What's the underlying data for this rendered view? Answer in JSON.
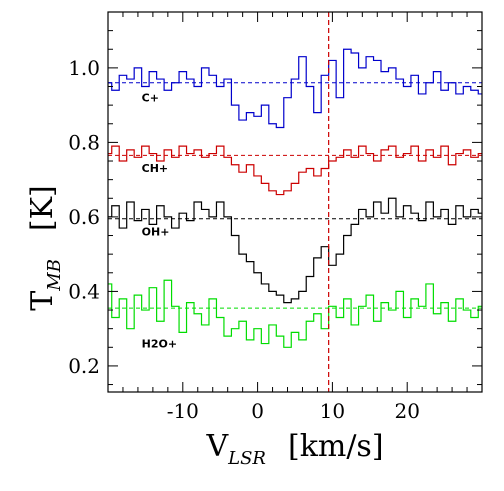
{
  "chart_data": {
    "type": "line",
    "title": "",
    "xlabel": {
      "main": "V",
      "sub": "LSR",
      "unit": "[km/s]"
    },
    "ylabel": {
      "main": "T",
      "sub": "MB",
      "unit": "[K]"
    },
    "xlim": [
      -20,
      30
    ],
    "ylim": [
      0.13,
      1.15
    ],
    "x_ticks": [
      -10,
      0,
      10,
      20
    ],
    "y_ticks": [
      0.2,
      0.4,
      0.6,
      0.8,
      1.0
    ],
    "x_tick_labels": [
      "-10",
      "0",
      "10",
      "20"
    ],
    "y_tick_labels": [
      "0.2",
      "0.4",
      "0.6",
      "0.8",
      "1.0"
    ],
    "vline": {
      "x": 9.5,
      "color": "#cc0000"
    },
    "grid": false,
    "series": [
      {
        "name": "C+",
        "color": "#0000cc",
        "baseline": 0.96,
        "label_at": [
          -15.5,
          0.91
        ],
        "x": [
          -20,
          -19,
          -18,
          -17,
          -16,
          -15,
          -14,
          -13,
          -12,
          -11,
          -10,
          -9,
          -8,
          -7,
          -6,
          -5,
          -4,
          -3,
          -2,
          -1,
          0,
          1,
          2,
          3,
          4,
          5,
          6,
          7,
          8,
          9,
          10,
          11,
          12,
          13,
          14,
          15,
          16,
          17,
          18,
          19,
          20,
          21,
          22,
          23,
          24,
          25,
          26,
          27,
          28,
          29,
          30
        ],
        "y": [
          0.96,
          0.94,
          0.98,
          0.97,
          1.0,
          0.95,
          0.99,
          0.97,
          0.94,
          0.96,
          0.99,
          0.97,
          0.95,
          1.0,
          0.98,
          0.95,
          0.97,
          0.9,
          0.86,
          0.88,
          0.87,
          0.9,
          0.85,
          0.84,
          0.92,
          0.97,
          1.03,
          0.95,
          0.88,
          0.98,
          1.02,
          0.92,
          1.05,
          1.04,
          1.0,
          1.03,
          1.02,
          0.99,
          1.0,
          0.97,
          0.95,
          0.98,
          0.93,
          0.96,
          0.99,
          0.94,
          0.96,
          0.93,
          0.95,
          0.94,
          0.93
        ]
      },
      {
        "name": "CH+",
        "color": "#cc0000",
        "baseline": 0.765,
        "label_at": [
          -15.5,
          0.72
        ],
        "x": [
          -20,
          -19,
          -18,
          -17,
          -16,
          -15,
          -14,
          -13,
          -12,
          -11,
          -10,
          -9,
          -8,
          -7,
          -6,
          -5,
          -4,
          -3,
          -2,
          -1,
          0,
          1,
          2,
          3,
          4,
          5,
          6,
          7,
          8,
          9,
          10,
          11,
          12,
          13,
          14,
          15,
          16,
          17,
          18,
          19,
          20,
          21,
          22,
          23,
          24,
          25,
          26,
          27,
          28,
          29,
          30
        ],
        "y": [
          0.77,
          0.79,
          0.75,
          0.78,
          0.76,
          0.79,
          0.77,
          0.75,
          0.78,
          0.76,
          0.79,
          0.77,
          0.78,
          0.76,
          0.77,
          0.79,
          0.76,
          0.74,
          0.72,
          0.74,
          0.71,
          0.69,
          0.67,
          0.66,
          0.67,
          0.69,
          0.72,
          0.73,
          0.71,
          0.73,
          0.75,
          0.76,
          0.78,
          0.76,
          0.79,
          0.77,
          0.75,
          0.78,
          0.79,
          0.76,
          0.77,
          0.79,
          0.75,
          0.78,
          0.76,
          0.79,
          0.74,
          0.77,
          0.78,
          0.76,
          0.77
        ]
      },
      {
        "name": "OH+",
        "color": "#000000",
        "baseline": 0.595,
        "label_at": [
          -15.5,
          0.55
        ],
        "x": [
          -20,
          -19,
          -18,
          -17,
          -16,
          -15,
          -14,
          -13,
          -12,
          -11,
          -10,
          -9,
          -8,
          -7,
          -6,
          -5,
          -4,
          -3,
          -2,
          -1,
          0,
          1,
          2,
          3,
          4,
          5,
          6,
          7,
          8,
          9,
          10,
          11,
          12,
          13,
          14,
          15,
          16,
          17,
          18,
          19,
          20,
          21,
          22,
          23,
          24,
          25,
          26,
          27,
          28,
          29,
          30
        ],
        "y": [
          0.6,
          0.63,
          0.57,
          0.64,
          0.59,
          0.62,
          0.58,
          0.63,
          0.6,
          0.57,
          0.61,
          0.59,
          0.64,
          0.62,
          0.6,
          0.64,
          0.6,
          0.55,
          0.5,
          0.48,
          0.45,
          0.42,
          0.4,
          0.39,
          0.37,
          0.38,
          0.4,
          0.44,
          0.49,
          0.52,
          0.47,
          0.5,
          0.55,
          0.58,
          0.62,
          0.6,
          0.64,
          0.61,
          0.65,
          0.6,
          0.63,
          0.61,
          0.59,
          0.64,
          0.6,
          0.62,
          0.58,
          0.63,
          0.6,
          0.62,
          0.61
        ]
      },
      {
        "name": "H2O+",
        "color": "#00dd00",
        "baseline": 0.355,
        "label_at": [
          -15.5,
          0.25
        ],
        "x": [
          -20,
          -19,
          -18,
          -17,
          -16,
          -15,
          -14,
          -13,
          -12,
          -11,
          -10,
          -9,
          -8,
          -7,
          -6,
          -5,
          -4,
          -3,
          -2,
          -1,
          0,
          1,
          2,
          3,
          4,
          5,
          6,
          7,
          8,
          9,
          10,
          11,
          12,
          13,
          14,
          15,
          16,
          17,
          18,
          19,
          20,
          21,
          22,
          23,
          24,
          25,
          26,
          27,
          28,
          29,
          30
        ],
        "y": [
          0.42,
          0.33,
          0.38,
          0.3,
          0.39,
          0.35,
          0.41,
          0.32,
          0.43,
          0.36,
          0.29,
          0.37,
          0.34,
          0.31,
          0.38,
          0.33,
          0.28,
          0.3,
          0.32,
          0.27,
          0.3,
          0.26,
          0.31,
          0.28,
          0.25,
          0.29,
          0.27,
          0.32,
          0.34,
          0.3,
          0.36,
          0.33,
          0.38,
          0.31,
          0.36,
          0.39,
          0.32,
          0.37,
          0.35,
          0.4,
          0.33,
          0.38,
          0.36,
          0.42,
          0.34,
          0.37,
          0.32,
          0.38,
          0.35,
          0.33,
          0.36
        ]
      }
    ]
  }
}
